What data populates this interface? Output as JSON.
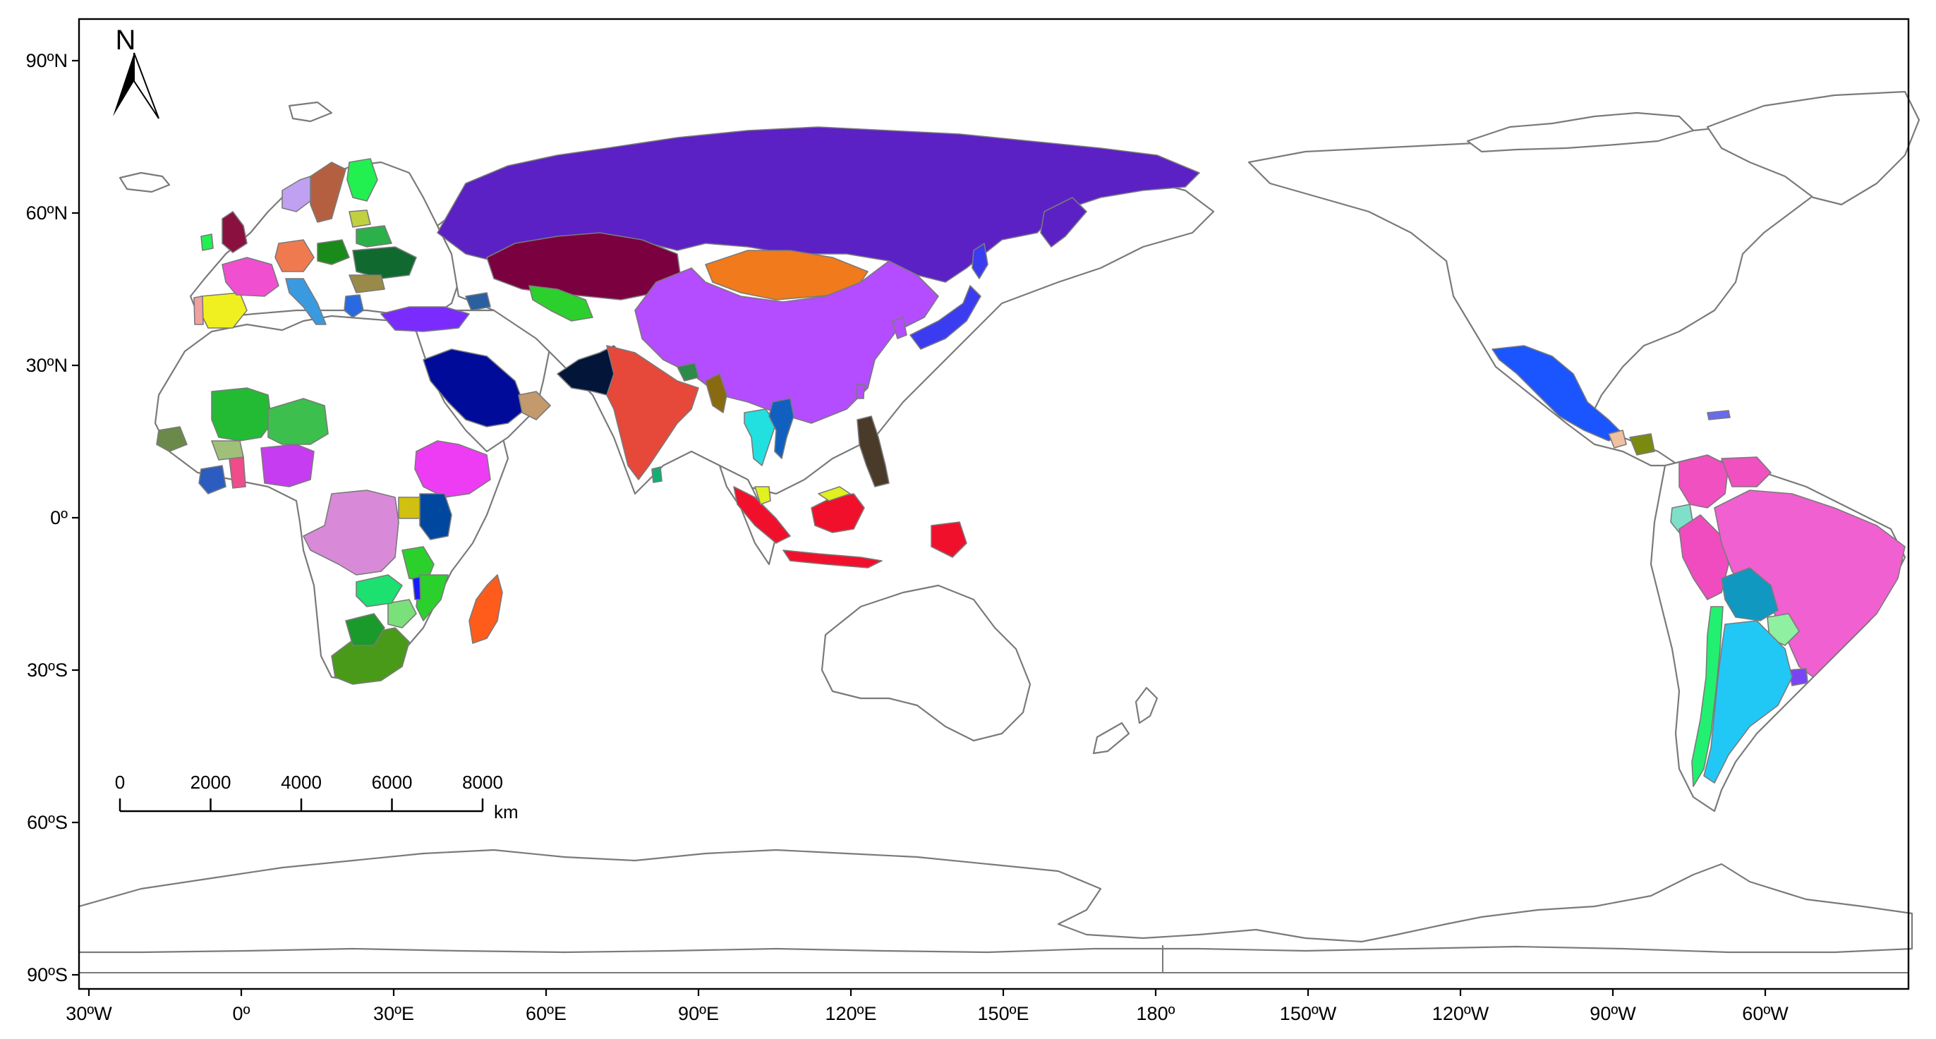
{
  "map": {
    "lat_ticks": [
      {
        "lat": 90,
        "label": "90ºN"
      },
      {
        "lat": 60,
        "label": "60ºN"
      },
      {
        "lat": 30,
        "label": "30ºN"
      },
      {
        "lat": 0,
        "label": "0º"
      },
      {
        "lat": -30,
        "label": "30ºS"
      },
      {
        "lat": -60,
        "label": "60ºS"
      },
      {
        "lat": -90,
        "label": "90ºS"
      }
    ],
    "lon_ticks": [
      {
        "lon": -30,
        "label": "30ºW"
      },
      {
        "lon": 0,
        "label": "0º"
      },
      {
        "lon": 30,
        "label": "30ºE"
      },
      {
        "lon": 60,
        "label": "60ºE"
      },
      {
        "lon": 90,
        "label": "90ºE"
      },
      {
        "lon": 120,
        "label": "120ºE"
      },
      {
        "lon": 150,
        "label": "150ºE"
      },
      {
        "lon": 180,
        "label": "180º"
      },
      {
        "lon": 210,
        "label": "150ºW"
      },
      {
        "lon": 240,
        "label": "120ºW"
      },
      {
        "lon": 270,
        "label": "90ºW"
      },
      {
        "lon": 300,
        "label": "60ºW"
      }
    ],
    "north_arrow": {
      "label": "N"
    },
    "scale_bar": {
      "labels": [
        "0",
        "2000",
        "4000",
        "6000",
        "8000"
      ],
      "unit": "km"
    },
    "highlighted_countries": [
      {
        "name": "Russia",
        "color": "#5b21c4"
      },
      {
        "name": "Kazakhstan",
        "color": "#7a0040"
      },
      {
        "name": "Mongolia",
        "color": "#f07a1c"
      },
      {
        "name": "China",
        "color": "#b44cff"
      },
      {
        "name": "Pakistan",
        "color": "#031539"
      },
      {
        "name": "India",
        "color": "#e6483a"
      },
      {
        "name": "Saudi Arabia",
        "color": "#000c99"
      },
      {
        "name": "Oman",
        "color": "#c39a6b"
      },
      {
        "name": "Turkey",
        "color": "#7a2cff"
      },
      {
        "name": "Japan",
        "color": "#3b3cf0"
      },
      {
        "name": "Indonesia",
        "color": "#f0102c"
      },
      {
        "name": "Philippines",
        "color": "#4a3a2a"
      },
      {
        "name": "Thailand",
        "color": "#22e0e0"
      },
      {
        "name": "Vietnam",
        "color": "#1160c0"
      },
      {
        "name": "Ethiopia",
        "color": "#ee3cf5"
      },
      {
        "name": "DR Congo",
        "color": "#d88ad8"
      },
      {
        "name": "Kenya",
        "color": "#0047a0"
      },
      {
        "name": "Mali",
        "color": "#22bb33"
      },
      {
        "name": "Niger",
        "color": "#3cbf4c"
      },
      {
        "name": "Nigeria",
        "color": "#c63cf0"
      },
      {
        "name": "Madagascar",
        "color": "#ff5c1c"
      },
      {
        "name": "South Africa",
        "color": "#4a9a1a"
      },
      {
        "name": "Mozambique",
        "color": "#2cd02c"
      },
      {
        "name": "Zambia",
        "color": "#1ce070"
      },
      {
        "name": "Mexico",
        "color": "#1a55ff"
      },
      {
        "name": "Brazil",
        "color": "#f060d0"
      },
      {
        "name": "Peru",
        "color": "#f04cc0"
      },
      {
        "name": "Bolivia",
        "color": "#1098c0"
      },
      {
        "name": "Argentina",
        "color": "#22c8f5"
      },
      {
        "name": "Chile",
        "color": "#22f070"
      },
      {
        "name": "Paraguay",
        "color": "#8ef0a0"
      },
      {
        "name": "Uruguay",
        "color": "#7a44f5"
      },
      {
        "name": "Ecuador",
        "color": "#7ee0c8"
      },
      {
        "name": "Spain",
        "color": "#f0f020"
      },
      {
        "name": "France",
        "color": "#f050d0"
      },
      {
        "name": "United Kingdom",
        "color": "#8a1040"
      },
      {
        "name": "Germany",
        "color": "#f07a50"
      },
      {
        "name": "Poland",
        "color": "#1a8a1a"
      },
      {
        "name": "Ukraine",
        "color": "#106a30"
      },
      {
        "name": "Sweden",
        "color": "#b46040"
      },
      {
        "name": "Finland",
        "color": "#22f050"
      }
    ]
  }
}
